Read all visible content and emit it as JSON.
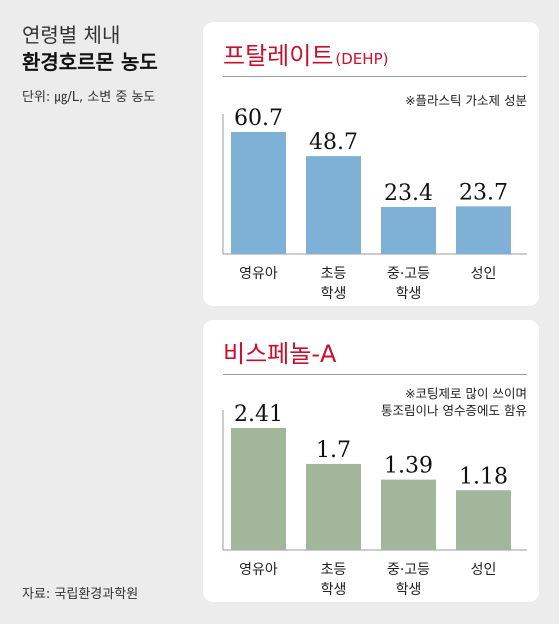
{
  "header": {
    "title_line1": "연령별 체내",
    "title_line2": "환경호르몬 농도",
    "unit": "단위: ㎍/L, 소변 중 농도"
  },
  "source": "자료: 국립환경과학원",
  "chart_data": [
    {
      "type": "bar",
      "title": "프탈레이트",
      "subtitle": "(DEHP)",
      "note": [
        "※플라스틱 가소제 성분"
      ],
      "categories": [
        [
          "영유아"
        ],
        [
          "초등",
          "학생"
        ],
        [
          "중·고등",
          "학생"
        ],
        [
          "성인"
        ]
      ],
      "values": [
        60.7,
        48.7,
        23.4,
        23.7
      ],
      "value_labels": [
        "60.7",
        "48.7",
        "23.4",
        "23.7"
      ],
      "ylim": [
        0,
        70
      ],
      "bar_color": "#7fb0d6",
      "grid": false
    },
    {
      "type": "bar",
      "title": "비스페놀-A",
      "subtitle": "",
      "note": [
        "※코팅제로 많이 쓰이며",
        "통조림이나 영수증에도 함유"
      ],
      "categories": [
        [
          "영유아"
        ],
        [
          "초등",
          "학생"
        ],
        [
          "중·고등",
          "학생"
        ],
        [
          "성인"
        ]
      ],
      "values": [
        2.41,
        1.7,
        1.39,
        1.18
      ],
      "value_labels": [
        "2.41",
        "1.7",
        "1.39",
        "1.18"
      ],
      "ylim": [
        0,
        2.75
      ],
      "bar_color": "#a2b69c",
      "grid": false
    }
  ]
}
